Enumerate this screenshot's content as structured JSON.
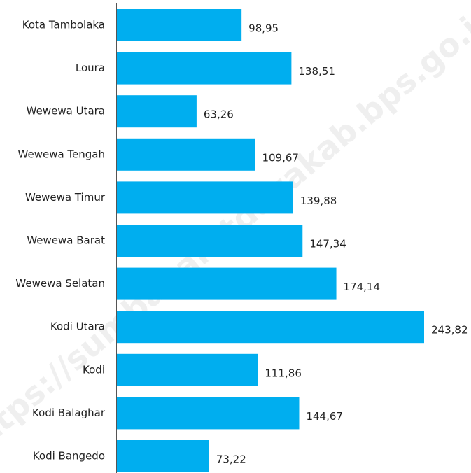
{
  "chart_data": {
    "type": "bar",
    "orientation": "horizontal",
    "categories": [
      "Kota Tambolaka",
      "Loura",
      "Wewewa Utara",
      "Wewewa Tengah",
      "Wewewa Timur",
      "Wewewa Barat",
      "Wewewa Selatan",
      "Kodi Utara",
      "Kodi",
      "Kodi Balaghar",
      "Kodi Bangedo"
    ],
    "values": [
      98.95,
      138.51,
      63.26,
      109.67,
      139.88,
      147.34,
      174.14,
      243.82,
      111.86,
      144.67,
      73.22
    ],
    "value_labels": [
      "98,95",
      "138,51",
      "63,26",
      "109,67",
      "139,88",
      "147,34",
      "174,14",
      "243,82",
      "111,86",
      "144,67",
      "73,22"
    ],
    "color": "#00aeef",
    "watermark": "https://sumbabaratdayakab.bps.go.id"
  }
}
